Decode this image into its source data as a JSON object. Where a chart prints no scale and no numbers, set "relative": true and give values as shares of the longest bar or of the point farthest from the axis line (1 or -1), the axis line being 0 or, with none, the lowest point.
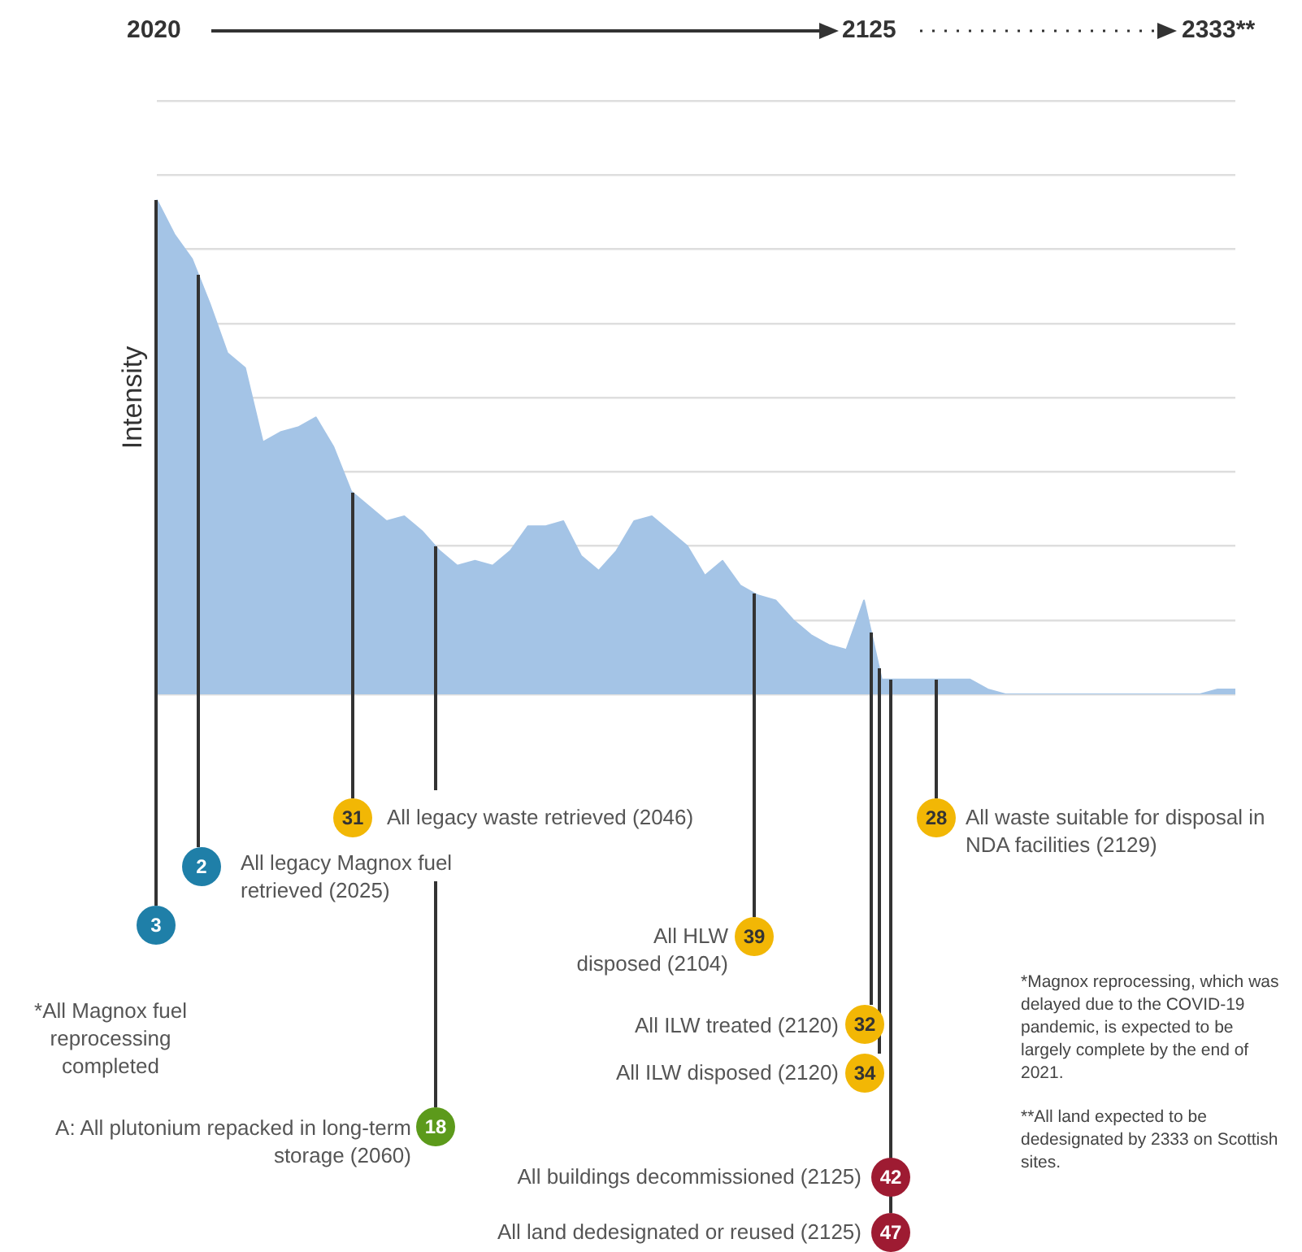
{
  "chart_data": {
    "type": "area",
    "relative": true,
    "ylabel": "Intensity",
    "grid": "y",
    "categories": [
      null,
      null,
      null,
      null,
      null,
      null,
      null,
      null,
      null,
      null,
      null,
      null,
      null,
      null,
      null,
      null,
      null,
      null,
      null,
      null,
      null,
      null,
      null,
      null,
      null,
      null,
      null,
      null,
      null,
      null,
      null,
      null,
      null,
      null,
      null,
      null,
      null,
      null,
      null,
      null,
      null,
      null,
      null,
      null,
      null,
      null,
      null,
      null,
      null,
      null,
      null,
      null,
      null,
      null,
      null,
      null,
      null,
      null,
      null,
      null,
      null,
      null
    ],
    "series": [
      {
        "color": "#a4c4e6",
        "values": [
          1.0,
          0.93,
          0.88,
          0.79,
          0.69,
          0.66,
          0.51,
          0.53,
          0.54,
          0.56,
          0.5,
          0.41,
          0.38,
          0.35,
          0.36,
          0.33,
          0.29,
          0.26,
          0.27,
          0.26,
          0.29,
          0.34,
          0.34,
          0.35,
          0.28,
          0.25,
          0.29,
          0.35,
          0.36,
          0.33,
          0.3,
          0.24,
          0.27,
          0.22,
          0.2,
          0.19,
          0.15,
          0.12,
          0.1,
          0.09,
          0.19,
          0.03,
          0.03,
          0.03,
          0.03,
          0.03,
          0.03,
          0.01,
          0,
          0,
          0,
          0,
          0,
          0,
          0,
          0,
          0,
          0,
          0,
          0,
          0.01,
          0.01
        ]
      }
    ],
    "annotations": [
      "2020",
      "2125",
      "2333**",
      "3",
      "*All Magnox fuel reprocessing completed",
      "2",
      "All legacy Magnox fuel retrieved (2025)",
      "31",
      "All legacy waste retrieved (2046)",
      "18",
      "A: All plutonium repacked in long-term storage (2060)",
      "39",
      "All HLW disposed (2104)",
      "32",
      "All ILW treated (2120)",
      "34",
      "All ILW disposed (2120)",
      "42",
      "All buildings decommissioned (2125)",
      "47",
      "All land dedesignated or reused (2125)",
      "28",
      "All waste suitable for disposal in NDA facilities (2129)",
      "*Magnox reprocessing, which was delayed due to the COVID-19 pandemic, is expected to be largely complete by the end of 2021.",
      "**All land expected to be dedesignated by 2333 on Scottish sites."
    ]
  }
}
